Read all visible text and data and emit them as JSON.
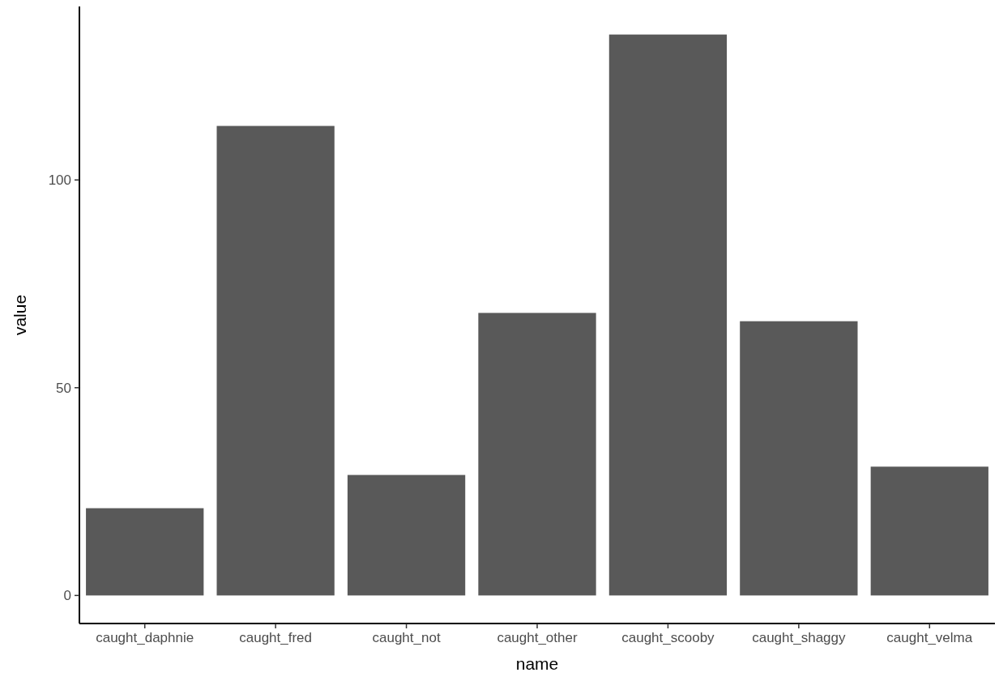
{
  "chart_data": {
    "type": "bar",
    "xlabel": "name",
    "ylabel": "value",
    "categories": [
      "caught_daphnie",
      "caught_fred",
      "caught_not",
      "caught_other",
      "caught_scooby",
      "caught_shaggy",
      "caught_velma"
    ],
    "values": [
      21,
      113,
      29,
      68,
      135,
      66,
      31
    ],
    "color": "#595959",
    "ylim": [
      -6.75,
      141.75
    ],
    "yticks": [
      0,
      50,
      100
    ],
    "grid": false
  }
}
